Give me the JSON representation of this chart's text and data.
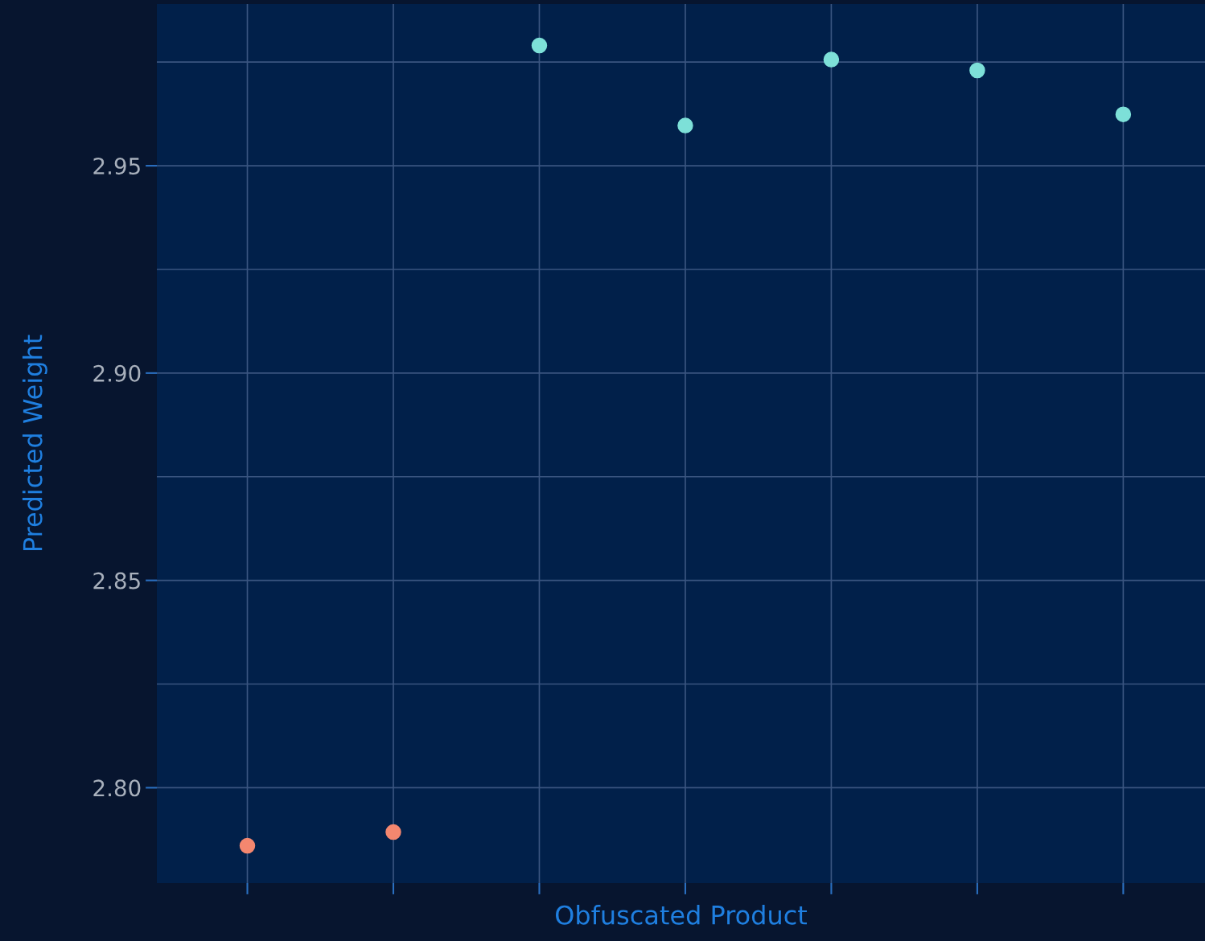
{
  "chart_data": {
    "type": "scatter",
    "xlabel": "Obfuscated Product",
    "ylabel": "Predicted Weight",
    "categories": [
      null,
      null,
      null,
      null,
      null,
      null,
      null
    ],
    "series": [
      {
        "color": "#f4876f",
        "values": [
          2.786,
          2.7893,
          null,
          null,
          null,
          null,
          null
        ]
      },
      {
        "color": "#7de0d8",
        "values": [
          null,
          null,
          2.979,
          2.9597,
          2.9756,
          2.973,
          2.9624
        ]
      }
    ],
    "ylim": [
      2.777,
      2.989
    ],
    "yticks": [
      {
        "value": 2.8,
        "label": "2.80"
      },
      {
        "value": 2.825,
        "label": null
      },
      2.85,
      {
        "value": 2.875,
        "label": null
      },
      {
        "value": 2.9,
        "label": "2.90"
      },
      {
        "value": 2.925,
        "label": null
      },
      2.95,
      {
        "value": 2.975,
        "label": null
      }
    ],
    "grid": true,
    "marker": "circle"
  }
}
